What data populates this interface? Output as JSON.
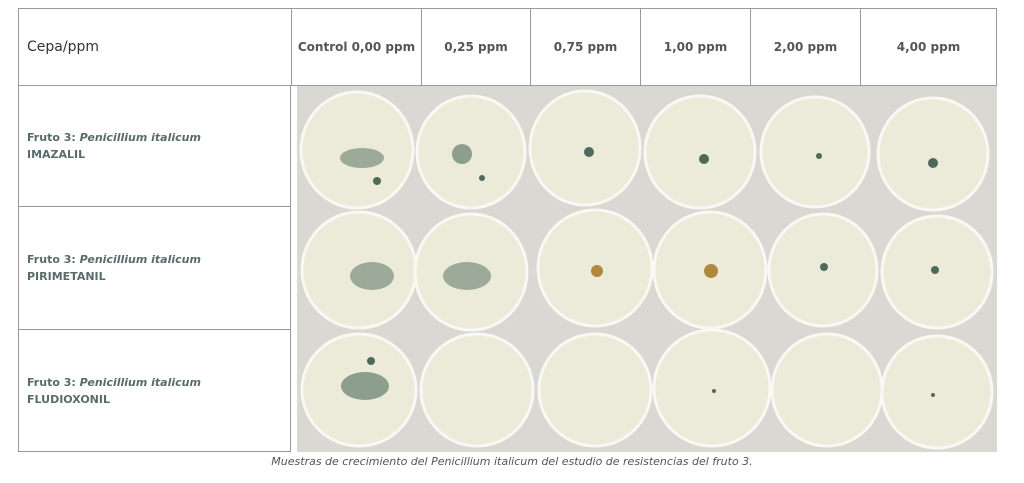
{
  "header": {
    "first": "Cepa/ppm",
    "columns": [
      "Control 0,00 ppm",
      "0,25 ppm",
      "0,75 ppm",
      "1,00 ppm",
      "2,00 ppm",
      "4,00 ppm"
    ]
  },
  "rows": [
    {
      "prefix": "Fruto 3: ",
      "species": "Penicillium italicum",
      "fungicide": "IMAZALIL"
    },
    {
      "prefix": "Fruto 3: ",
      "species": "Penicillium italicum",
      "fungicide": "PIRIMETANIL"
    },
    {
      "prefix": "Fruto 3: ",
      "species": "Penicillium italicum",
      "fungicide": "FLUDIOXONIL"
    }
  ],
  "caption": "Muestras de crecimiento del Penicillium italicum del estudio de resistencias del fruto 3."
}
